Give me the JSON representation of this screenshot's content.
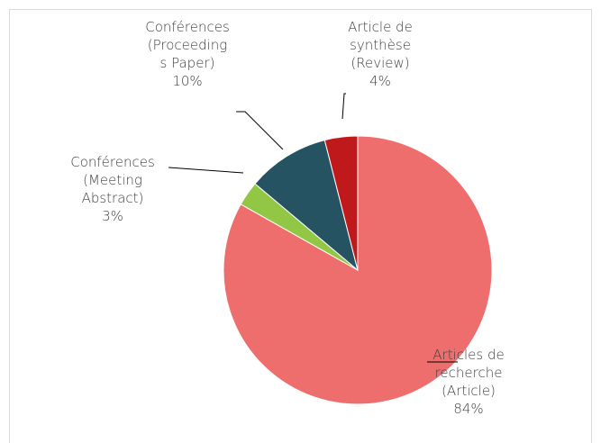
{
  "chart_data": {
    "type": "pie",
    "categories": [
      "Articles de recherche (Article)",
      "Conférences (Meeting Abstract)",
      "Conférences (Proceedings Paper)",
      "Article de synthèse (Review)"
    ],
    "values": [
      84,
      3,
      10,
      4
    ],
    "value_labels": [
      "84%",
      "3%",
      "10%",
      "4%"
    ],
    "colors": [
      "#ee6e6e",
      "#92c746",
      "#255362",
      "#c0191b"
    ]
  }
}
